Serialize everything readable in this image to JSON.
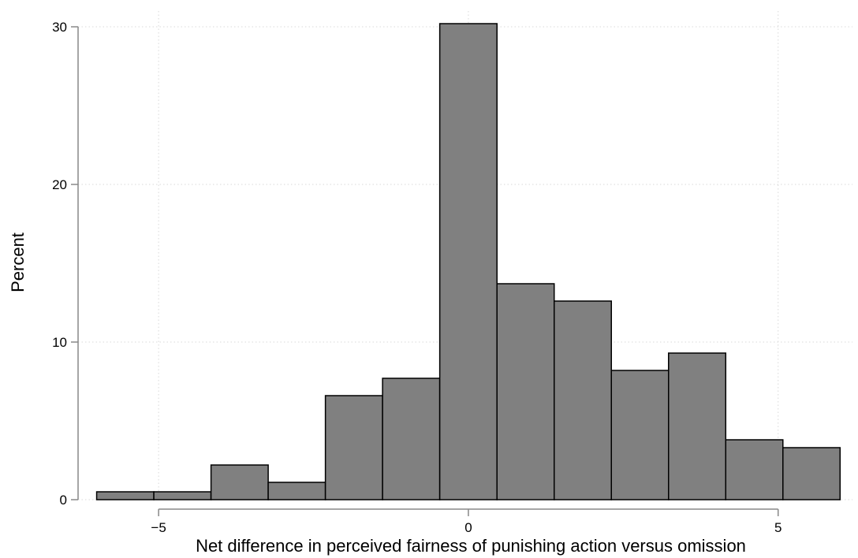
{
  "chart_data": {
    "type": "bar",
    "histogram": true,
    "title": "",
    "xlabel": "Net difference in perceived fairness of punishing action versus omission",
    "ylabel": "Percent",
    "xlim": [
      -6.3,
      6.2
    ],
    "ylim": [
      0,
      31
    ],
    "xticks": [
      -5,
      0,
      5
    ],
    "xtick_labels": [
      "−5",
      "0",
      "5"
    ],
    "yticks": [
      0,
      10,
      20,
      30
    ],
    "ytick_labels": [
      "0",
      "10",
      "20",
      "30"
    ],
    "grid": true,
    "legend": "none",
    "bin_edges": [
      -6.0,
      -5.077,
      -4.154,
      -3.231,
      -2.308,
      -1.385,
      -0.462,
      0.462,
      1.385,
      2.308,
      3.231,
      4.154,
      5.077,
      6.0
    ],
    "values": [
      0.5,
      0.5,
      2.2,
      1.1,
      6.6,
      7.7,
      30.2,
      13.7,
      12.6,
      8.2,
      9.3,
      3.8,
      3.3
    ],
    "colors": {
      "bar_fill": "#808080",
      "bar_stroke": "#000000",
      "grid": "#d9d9d9",
      "axis": "#888888"
    }
  }
}
